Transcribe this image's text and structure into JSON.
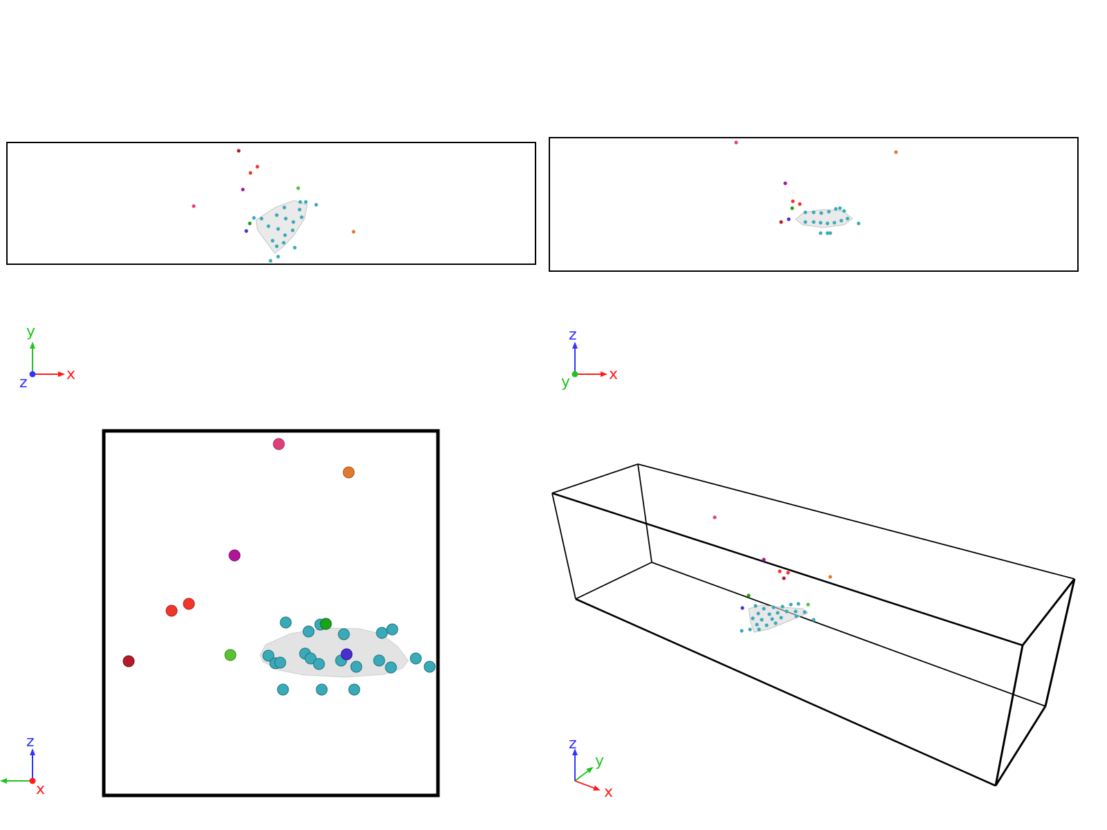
{
  "colors": {
    "background": "#ffffff",
    "box": "#000000",
    "hull_fill": "#d9d9d9",
    "axis_x": "#ff1a1a",
    "axis_y": "#1fc41f",
    "axis_z": "#3333ff",
    "atom_cyan": "#3aa9b8",
    "atom_pink": "#e0407a",
    "atom_orange": "#e07a2e",
    "atom_magenta": "#b0149a",
    "atom_red": "#f0362a",
    "atom_darkred": "#b31a2a",
    "atom_green": "#1aa31a",
    "atom_lime": "#58c232",
    "atom_blue": "#4a2fd0"
  },
  "views": [
    {
      "name": "top-view",
      "triad": {
        "right": "x",
        "up": "y",
        "dot": "z"
      }
    },
    {
      "name": "front-view",
      "triad": {
        "right": "x",
        "up": "z",
        "dot": "y"
      }
    },
    {
      "name": "side-view",
      "triad": {
        "left": "y",
        "up": "z",
        "dot": "x"
      }
    },
    {
      "name": "perspective-view",
      "triad": {
        "right": "x",
        "up": "z",
        "diag": "y"
      }
    }
  ]
}
